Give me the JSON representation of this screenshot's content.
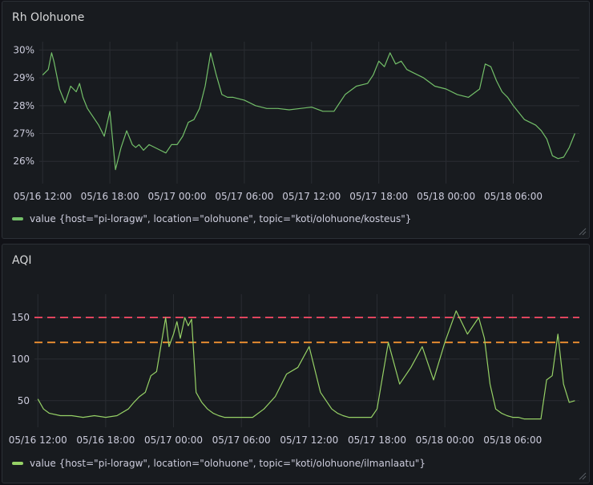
{
  "colors": {
    "background": "#111217",
    "panel": "#181b1f",
    "grid": "#2a2d33",
    "series": "#73bf69",
    "aqi_series": "#96d166",
    "threshold_red": "#e0455e",
    "threshold_orange": "#e38a30"
  },
  "panels": {
    "rh": {
      "title": "Rh Olohuone",
      "legend": "value {host=\"pi-loragw\", location=\"olohuone\", topic=\"koti/olohuone/kosteus\"}"
    },
    "aqi": {
      "title": "AQI",
      "legend": "value {host=\"pi-loragw\", location=\"olohuone\", topic=\"koti/olohuone/ilmanlaatu\"}"
    }
  },
  "chart_data": [
    {
      "type": "line",
      "title": "Rh Olohuone",
      "x_ticks": [
        "05/16 12:00",
        "05/16 18:00",
        "05/17 00:00",
        "05/17 06:00",
        "05/17 12:00",
        "05/17 18:00",
        "05/18 00:00",
        "05/18 06:00"
      ],
      "y_ticks": [
        "30%",
        "29%",
        "28%",
        "27%",
        "26%"
      ],
      "y_tick_values": [
        30,
        29,
        28,
        27,
        26
      ],
      "xlim": [
        -0.3,
        47.9
      ],
      "ylim": [
        25.2,
        30.3
      ],
      "grid": true,
      "legend_position": "bottom-left",
      "series": [
        {
          "name": "value {host=\"pi-loragw\", location=\"olohuone\", topic=\"koti/olohuone/kosteus\"}",
          "x": [
            0,
            0.5,
            0.8,
            1,
            1.5,
            2,
            2.5,
            3,
            3.3,
            3.6,
            4,
            4.5,
            5,
            5.5,
            6,
            6.5,
            7,
            7.5,
            8,
            8.3,
            8.6,
            9,
            9.5,
            10,
            10.5,
            11,
            11.5,
            12,
            12.5,
            13,
            13.5,
            14,
            14.5,
            15,
            15.5,
            16,
            16.5,
            17,
            18,
            19,
            20,
            21,
            22,
            23,
            24,
            25,
            26,
            27,
            28,
            29,
            29.5,
            30,
            30.5,
            31,
            31.5,
            32,
            32.5,
            33,
            34,
            35,
            36,
            37,
            38,
            39,
            39.5,
            40,
            40.5,
            41,
            41.5,
            42,
            43,
            44,
            44.5,
            45,
            45.5,
            46,
            46.5,
            47,
            47.5
          ],
          "y": [
            29.1,
            29.3,
            29.9,
            29.6,
            28.6,
            28.1,
            28.7,
            28.5,
            28.8,
            28.3,
            27.9,
            27.6,
            27.3,
            26.9,
            27.8,
            25.7,
            26.5,
            27.1,
            26.6,
            26.5,
            26.6,
            26.4,
            26.6,
            26.5,
            26.4,
            26.3,
            26.6,
            26.6,
            26.9,
            27.4,
            27.5,
            27.9,
            28.7,
            29.9,
            29.1,
            28.4,
            28.3,
            28.3,
            28.2,
            28.0,
            27.9,
            27.9,
            27.85,
            27.9,
            27.95,
            27.8,
            27.8,
            28.4,
            28.7,
            28.8,
            29.1,
            29.6,
            29.4,
            29.9,
            29.5,
            29.6,
            29.3,
            29.2,
            29.0,
            28.7,
            28.6,
            28.4,
            28.3,
            28.6,
            29.5,
            29.4,
            28.9,
            28.5,
            28.3,
            28.0,
            27.5,
            27.3,
            27.1,
            26.8,
            26.2,
            26.1,
            26.15,
            26.5,
            27.0
          ]
        }
      ]
    },
    {
      "type": "line",
      "title": "AQI",
      "x_ticks": [
        "05/16 12:00",
        "05/16 18:00",
        "05/17 00:00",
        "05/17 06:00",
        "05/17 12:00",
        "05/17 18:00",
        "05/18 00:00",
        "05/18 06:00"
      ],
      "y_ticks": [
        "150",
        "100",
        "50"
      ],
      "y_tick_values": [
        150,
        100,
        50
      ],
      "xlim": [
        -0.3,
        47.9
      ],
      "ylim": [
        18,
        178
      ],
      "grid": true,
      "thresholds": [
        150,
        120
      ],
      "legend_position": "bottom-left",
      "series": [
        {
          "name": "value {host=\"pi-loragw\", location=\"olohuone\", topic=\"koti/olohuone/ilmanlaatu\"}",
          "x": [
            0,
            0.5,
            1,
            2,
            3,
            4,
            5,
            6,
            7,
            8,
            8.5,
            9,
            9.5,
            10,
            10.5,
            11,
            11.3,
            11.6,
            12,
            12.3,
            12.6,
            13,
            13.3,
            13.6,
            14,
            14.5,
            15,
            15.5,
            16,
            16.5,
            17,
            17.5,
            18,
            19,
            20,
            21,
            22,
            23,
            24,
            25,
            26,
            26.5,
            27,
            27.5,
            28,
            28.5,
            29,
            29.5,
            30,
            31,
            32,
            33,
            34,
            35,
            36,
            37,
            38,
            39,
            39.5,
            40,
            40.5,
            41,
            41.5,
            42,
            42.5,
            43,
            44,
            44.5,
            45,
            45.5,
            46,
            46.5,
            47,
            47.5
          ],
          "y": [
            52,
            40,
            35,
            32,
            32,
            30,
            32,
            30,
            32,
            40,
            48,
            55,
            60,
            80,
            85,
            125,
            150,
            115,
            130,
            145,
            125,
            150,
            140,
            148,
            60,
            48,
            40,
            35,
            32,
            30,
            30,
            30,
            30,
            30,
            40,
            55,
            82,
            90,
            115,
            60,
            40,
            35,
            32,
            30,
            30,
            30,
            30,
            30,
            40,
            120,
            70,
            90,
            115,
            75,
            120,
            158,
            130,
            150,
            125,
            70,
            40,
            35,
            32,
            30,
            30,
            28,
            28,
            28,
            75,
            80,
            130,
            70,
            48,
            50
          ]
        }
      ]
    }
  ]
}
